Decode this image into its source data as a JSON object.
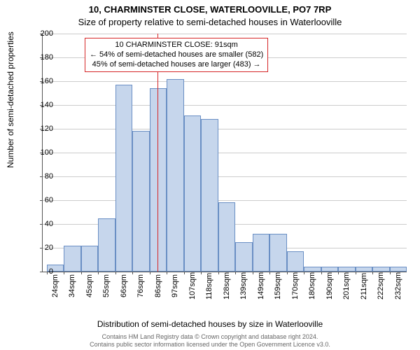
{
  "title_line1": "10, CHARMINSTER CLOSE, WATERLOOVILLE, PO7 7RP",
  "title_line2": "Size of property relative to semi-detached houses in Waterlooville",
  "ylabel": "Number of semi-detached properties",
  "xlabel": "Distribution of semi-detached houses by size in Waterlooville",
  "caption_line1": "Contains HM Land Registry data © Crown copyright and database right 2024.",
  "caption_line2": "Contains public sector information licensed under the Open Government Licence v3.0.",
  "chart": {
    "type": "histogram",
    "ylim": [
      0,
      200
    ],
    "ytick_step": 20,
    "bar_fill": "#c6d6ec",
    "bar_stroke": "#6a8fc4",
    "grid_color": "#cccccc",
    "axis_color": "#555555",
    "vline_color": "#d62728",
    "vline_x": 91,
    "categories": [
      "24sqm",
      "34sqm",
      "45sqm",
      "55sqm",
      "66sqm",
      "76sqm",
      "86sqm",
      "97sqm",
      "107sqm",
      "118sqm",
      "128sqm",
      "139sqm",
      "149sqm",
      "159sqm",
      "170sqm",
      "180sqm",
      "190sqm",
      "201sqm",
      "211sqm",
      "222sqm",
      "232sqm"
    ],
    "values": [
      6,
      22,
      22,
      45,
      157,
      118,
      154,
      162,
      131,
      128,
      58,
      25,
      32,
      32,
      17,
      4,
      4,
      4,
      4,
      4,
      4
    ],
    "annotation": {
      "line1": "10 CHARMINSTER CLOSE: 91sqm",
      "line2": "← 54% of semi-detached houses are smaller (582)",
      "line3": "45% of semi-detached houses are larger (483) →",
      "border": "#d62728"
    }
  }
}
